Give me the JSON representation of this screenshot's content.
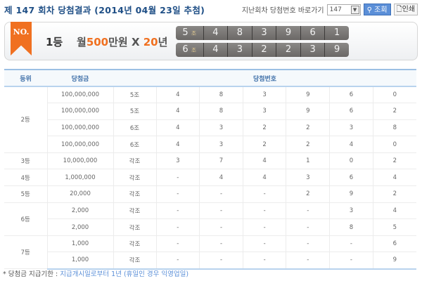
{
  "header": {
    "title": "제 147 회차 당첨결과 (2014년 04월 23일 추첨)",
    "goto_label": "지난회차 당첨번호 바로가기",
    "round_select": "147",
    "search_label": "조회",
    "print_label": "인쇄"
  },
  "banner": {
    "badge": "NO.",
    "rank": "1등",
    "prize_prefix": "월",
    "prize_amount": "500",
    "prize_unit": "만원 X ",
    "prize_years": "20",
    "prize_years_unit": "년",
    "lines": [
      {
        "group": "5",
        "group_unit": "조",
        "numbers": [
          "4",
          "8",
          "3",
          "9",
          "6",
          "1"
        ]
      },
      {
        "group": "6",
        "group_unit": "조",
        "numbers": [
          "4",
          "3",
          "2",
          "2",
          "3",
          "9"
        ]
      }
    ]
  },
  "table": {
    "headers": [
      "등위",
      "당첨금",
      "당첨번호"
    ],
    "ranks": [
      {
        "rank": "2등",
        "rows": [
          [
            "100,000,000",
            "5조",
            "4",
            "8",
            "3",
            "9",
            "6",
            "0"
          ],
          [
            "100,000,000",
            "5조",
            "4",
            "8",
            "3",
            "9",
            "6",
            "2"
          ],
          [
            "100,000,000",
            "6조",
            "4",
            "3",
            "2",
            "2",
            "3",
            "8"
          ],
          [
            "100,000,000",
            "6조",
            "4",
            "3",
            "2",
            "2",
            "4",
            "0"
          ]
        ]
      },
      {
        "rank": "3등",
        "rows": [
          [
            "10,000,000",
            "각조",
            "3",
            "7",
            "4",
            "1",
            "0",
            "2"
          ]
        ]
      },
      {
        "rank": "4등",
        "rows": [
          [
            "1,000,000",
            "각조",
            "-",
            "4",
            "4",
            "3",
            "6",
            "4"
          ]
        ]
      },
      {
        "rank": "5등",
        "rows": [
          [
            "20,000",
            "각조",
            "-",
            "-",
            "-",
            "2",
            "9",
            "2"
          ]
        ]
      },
      {
        "rank": "6등",
        "rows": [
          [
            "2,000",
            "각조",
            "-",
            "-",
            "-",
            "-",
            "3",
            "4"
          ],
          [
            "2,000",
            "각조",
            "-",
            "-",
            "-",
            "-",
            "8",
            "5"
          ]
        ]
      },
      {
        "rank": "7등",
        "rows": [
          [
            "1,000",
            "각조",
            "-",
            "-",
            "-",
            "-",
            "-",
            "6"
          ],
          [
            "1,000",
            "각조",
            "-",
            "-",
            "-",
            "-",
            "-",
            "9"
          ]
        ]
      }
    ]
  },
  "footer": {
    "label": "* 당첨금 지급기한 : ",
    "value": "지급개시일로부터 1년 (휴일인 경우 익영업일)"
  }
}
